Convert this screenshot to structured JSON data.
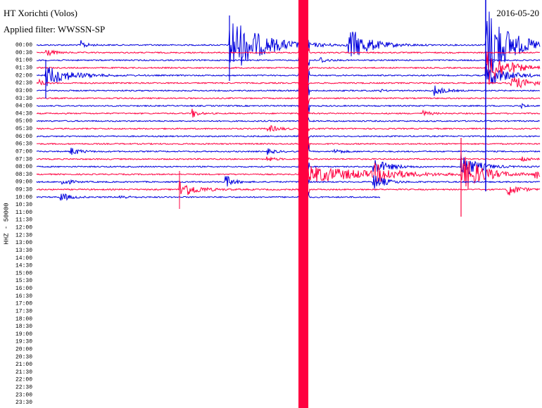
{
  "header": {
    "title": "HT Xorichti (Volos)",
    "filter": "Applied filter: WWSSN-SP",
    "date": "2016-05-20"
  },
  "axis_label": "HHZ - 50000",
  "time_labels": [
    "00:00",
    "00:30",
    "01:00",
    "01:30",
    "02:00",
    "02:30",
    "03:00",
    "03:30",
    "04:00",
    "04:30",
    "05:00",
    "05:30",
    "06:00",
    "06:30",
    "07:00",
    "07:30",
    "08:00",
    "08:30",
    "09:00",
    "09:30",
    "10:00",
    "10:30",
    "11:00",
    "11:30",
    "12:00",
    "12:30",
    "13:00",
    "13:30",
    "14:00",
    "14:30",
    "15:00",
    "15:30",
    "16:00",
    "16:30",
    "17:00",
    "17:30",
    "18:00",
    "18:30",
    "19:00",
    "19:30",
    "20:00",
    "20:30",
    "21:00",
    "21:30",
    "22:00",
    "22:30",
    "23:00",
    "23:30"
  ]
}
